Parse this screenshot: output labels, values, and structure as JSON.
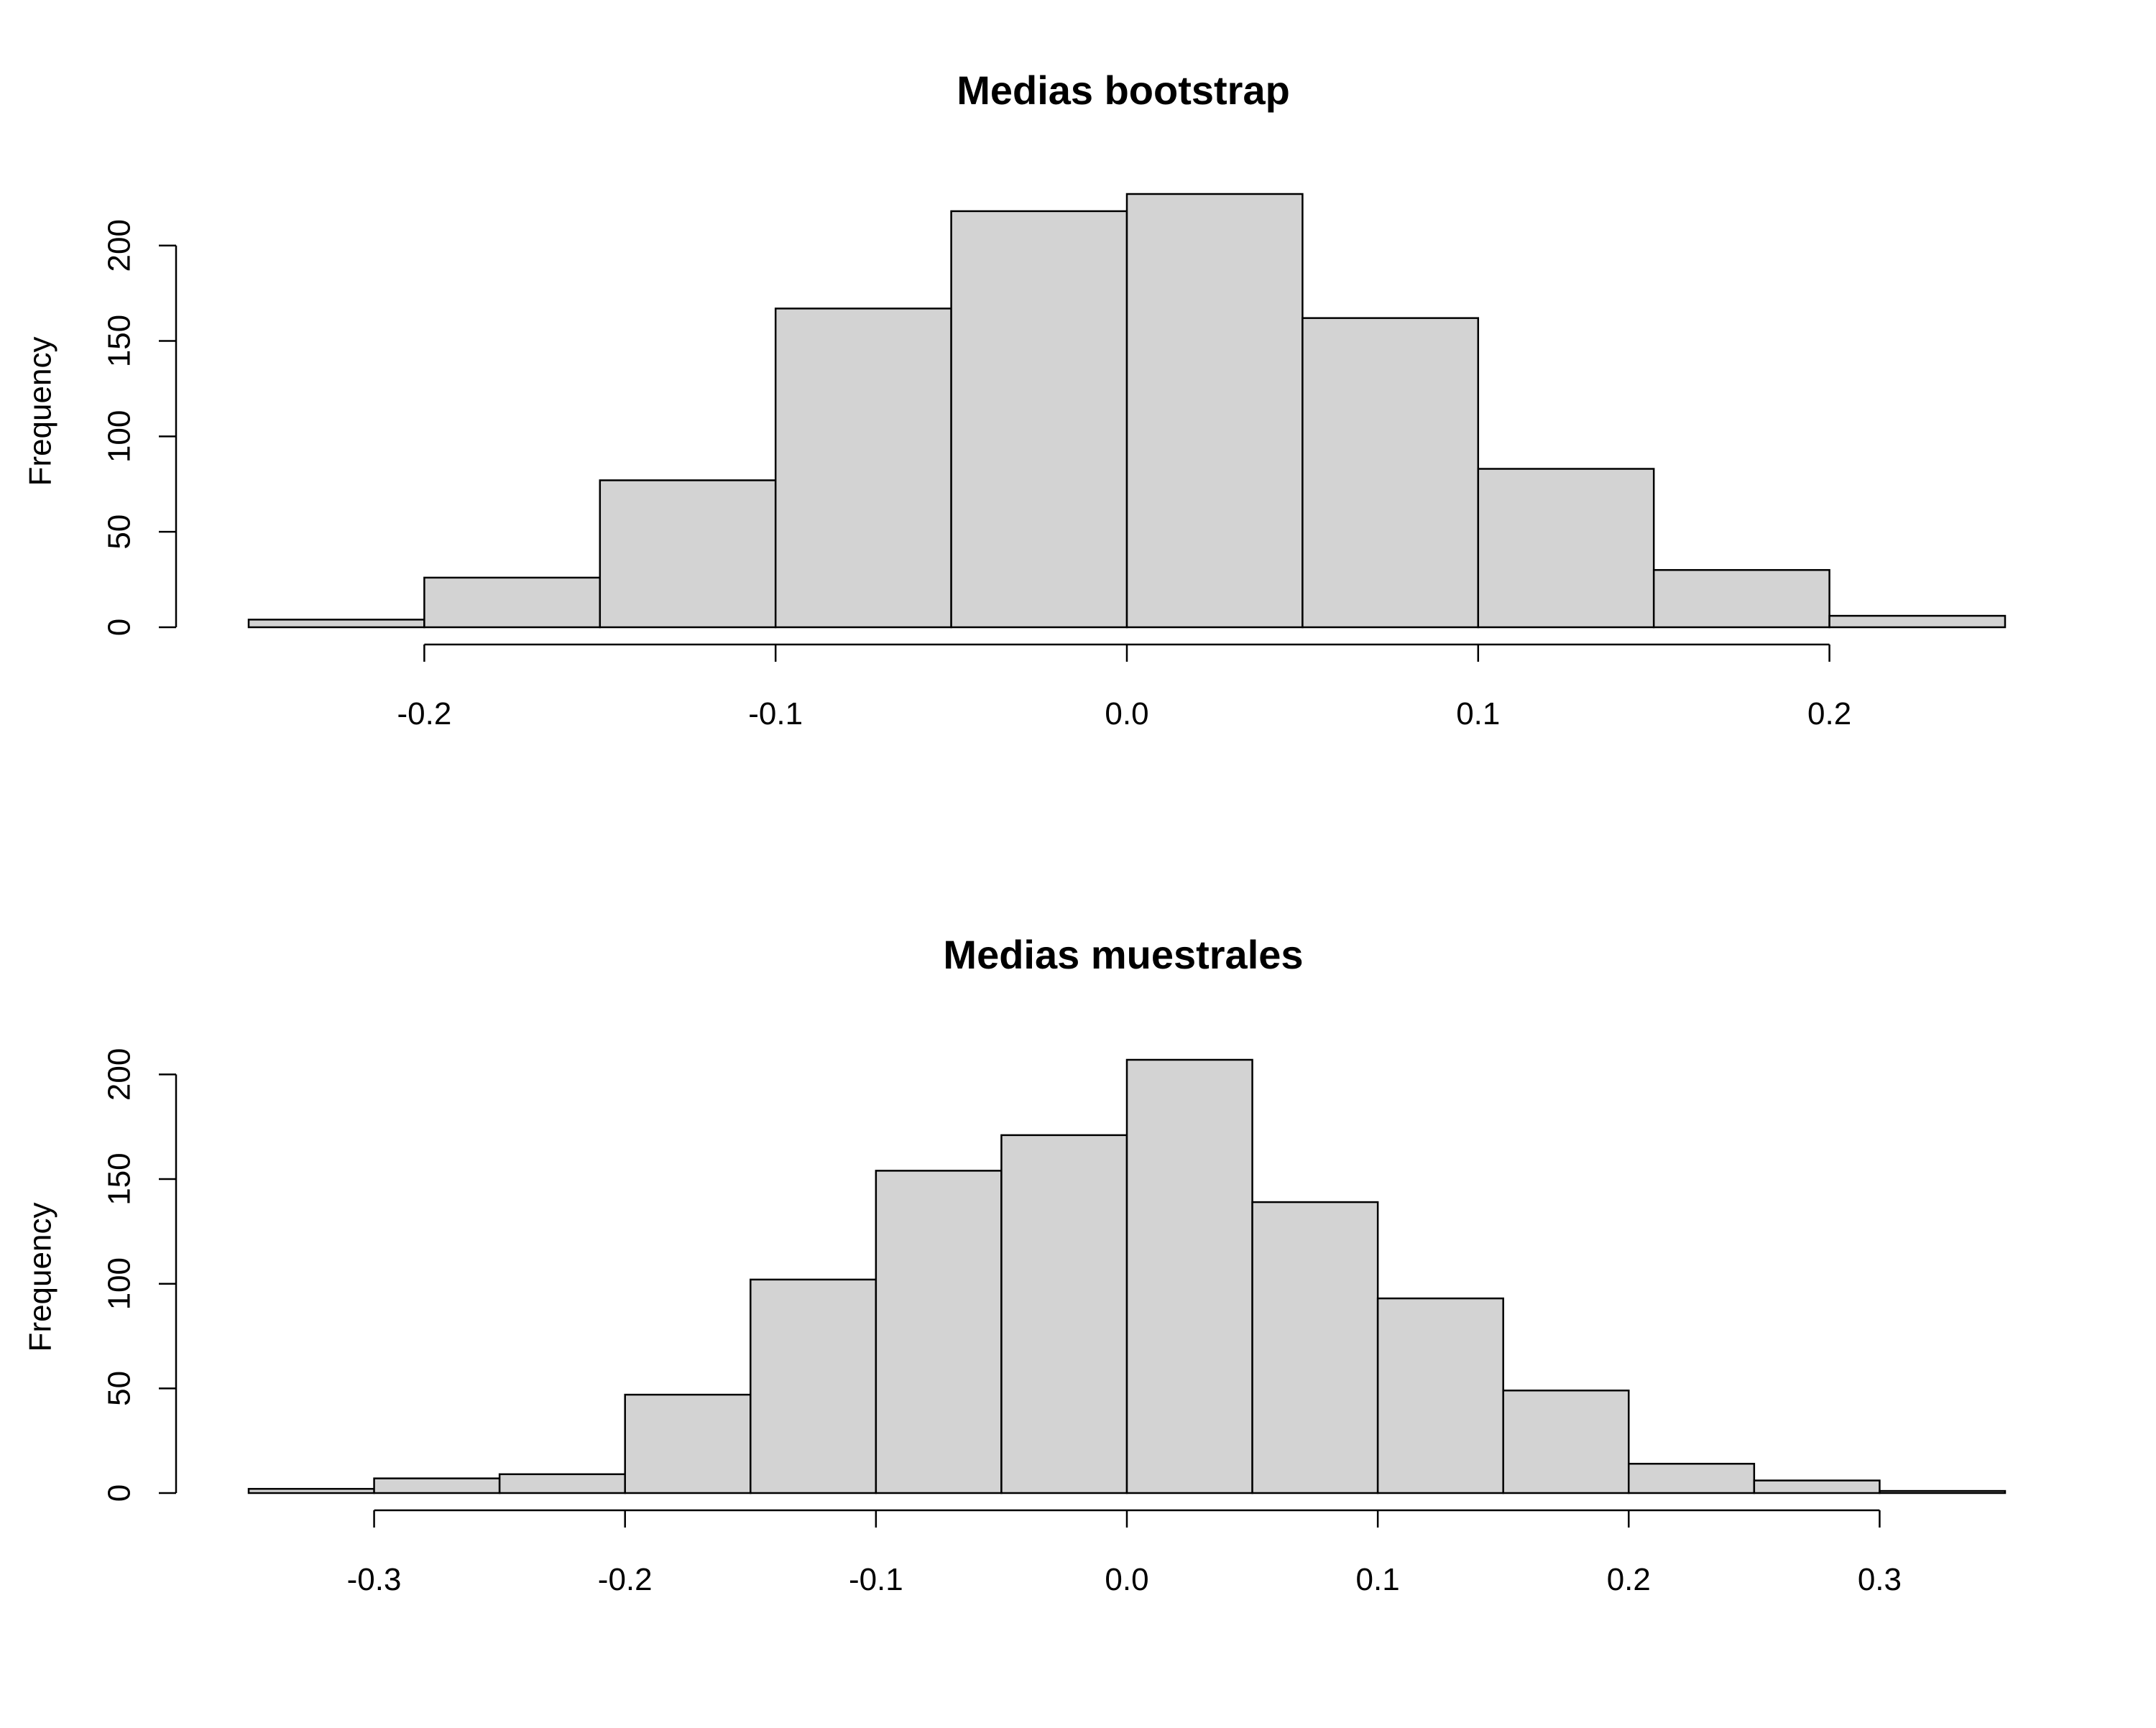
{
  "chart_data": [
    {
      "type": "bar",
      "title": "Medias bootstrap",
      "xlabel": "",
      "ylabel": "Frequency",
      "bin_edges": [
        -0.25,
        -0.2,
        -0.15,
        -0.1,
        -0.05,
        0.0,
        0.05,
        0.1,
        0.15,
        0.2,
        0.25
      ],
      "values": [
        4,
        26,
        77,
        167,
        218,
        227,
        162,
        83,
        30,
        6
      ],
      "xlim": [
        -0.25,
        0.25
      ],
      "ylim": [
        0,
        227
      ],
      "x_ticks": [
        -0.2,
        -0.1,
        0.0,
        0.1,
        0.2
      ],
      "x_tick_labels": [
        "-0.2",
        "-0.1",
        "0.0",
        "0.1",
        "0.2"
      ],
      "y_ticks": [
        0,
        50,
        100,
        150,
        200
      ],
      "y_tick_labels": [
        "0",
        "50",
        "100",
        "150",
        "200"
      ],
      "grid": false,
      "bar_fill": "#d3d3d3"
    },
    {
      "type": "bar",
      "title": "Medias muestrales",
      "xlabel": "",
      "ylabel": "Frequency",
      "bin_edges": [
        -0.35,
        -0.3,
        -0.25,
        -0.2,
        -0.15,
        -0.1,
        -0.05,
        0.0,
        0.05,
        0.1,
        0.15,
        0.2,
        0.25,
        0.3,
        0.35
      ],
      "values": [
        2,
        7,
        9,
        47,
        102,
        154,
        171,
        207,
        139,
        93,
        49,
        14,
        6,
        1
      ],
      "xlim": [
        -0.35,
        0.35
      ],
      "ylim": [
        0,
        207
      ],
      "x_ticks": [
        -0.3,
        -0.2,
        -0.1,
        0.0,
        0.1,
        0.2,
        0.3
      ],
      "x_tick_labels": [
        "-0.3",
        "-0.2",
        "-0.1",
        "0.0",
        "0.1",
        "0.2",
        "0.3"
      ],
      "y_ticks": [
        0,
        50,
        100,
        150,
        200
      ],
      "y_tick_labels": [
        "0",
        "50",
        "100",
        "150",
        "200"
      ],
      "grid": false,
      "bar_fill": "#d3d3d3"
    }
  ]
}
